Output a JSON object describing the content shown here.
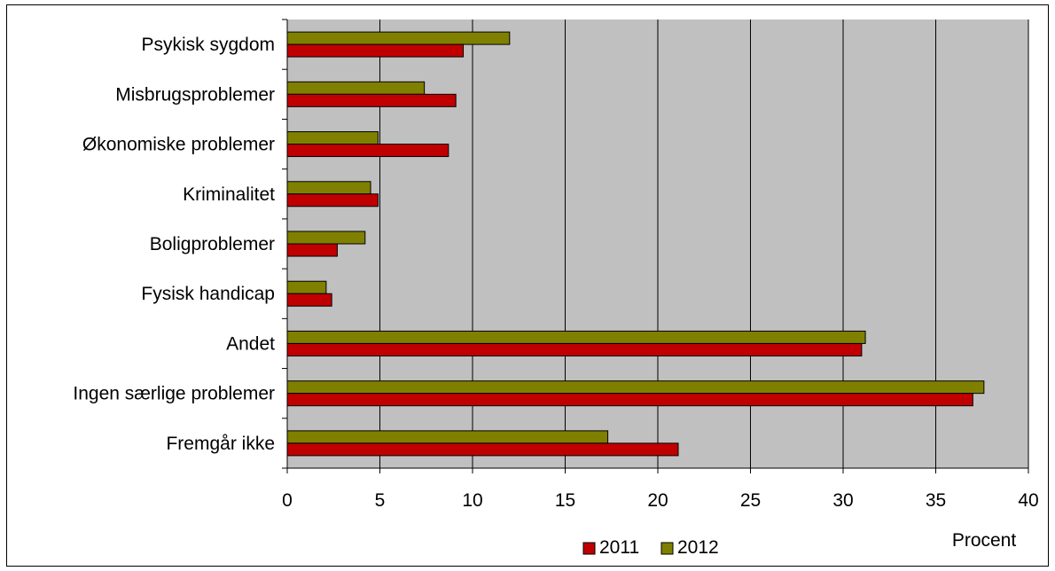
{
  "chart_data": {
    "type": "bar",
    "orientation": "horizontal",
    "title": "",
    "xlabel": "Procent",
    "ylabel": "",
    "xlim": [
      0,
      40
    ],
    "xticks": [
      0,
      5,
      10,
      15,
      20,
      25,
      30,
      35,
      40
    ],
    "xtick_labels": [
      "0",
      "5",
      "10",
      "15",
      "20",
      "25",
      "30",
      "35",
      "40"
    ],
    "grid": true,
    "legend_position": "bottom",
    "categories": [
      "Psykisk sygdom",
      "Misbrugsproblemer",
      "Økonomiske problemer",
      "Kriminalitet",
      "Boligproblemer",
      "Fysisk handicap",
      "Andet",
      "Ingen særlige problemer",
      "Fremgår ikke"
    ],
    "series": [
      {
        "name": "2011",
        "color": "#c00000",
        "values": [
          9.5,
          9.1,
          8.7,
          4.9,
          2.7,
          2.4,
          31.0,
          37.0,
          21.1
        ]
      },
      {
        "name": "2012",
        "color": "#808000",
        "values": [
          12.0,
          7.4,
          4.9,
          4.5,
          4.2,
          2.1,
          31.2,
          37.6,
          17.3
        ]
      }
    ],
    "plot_background": "#c0c0c0"
  }
}
